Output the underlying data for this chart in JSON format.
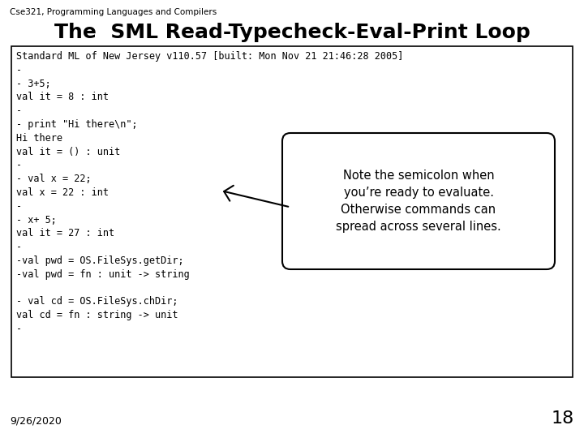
{
  "slide_label": "Cse321, Programming Languages and Compilers",
  "title": "The  SML Read-Typecheck-Eval-Print Loop",
  "code_text": "Standard ML of New Jersey v110.57 [built: Mon Nov 21 21:46:28 2005]\n-\n- 3+5;\nval it = 8 : int\n-\n- print \"Hi there\\n\";\nHi there\nval it = () : unit\n-\n- val x = 22;\nval x = 22 : int\n-\n- x+ 5;\nval it = 27 : int\n-\n-val pwd = OS.FileSys.getDir;\n-val pwd = fn : unit -> string\n\n- val cd = OS.FileSys.chDir;\nval cd = fn : string -> unit\n-",
  "callout_text": "Note the semicolon when\nyou’re ready to evaluate.\nOtherwise commands can\nspread across several lines.",
  "date_label": "9/26/2020",
  "page_number": "18",
  "bg_color": "#ffffff",
  "box_bg": "#ffffff",
  "box_border": "#000000",
  "code_font_size": 8.5,
  "title_font_size": 18,
  "label_font_size": 8,
  "callout_font_size": 10.5,
  "slide_label_font_size": 7.5
}
